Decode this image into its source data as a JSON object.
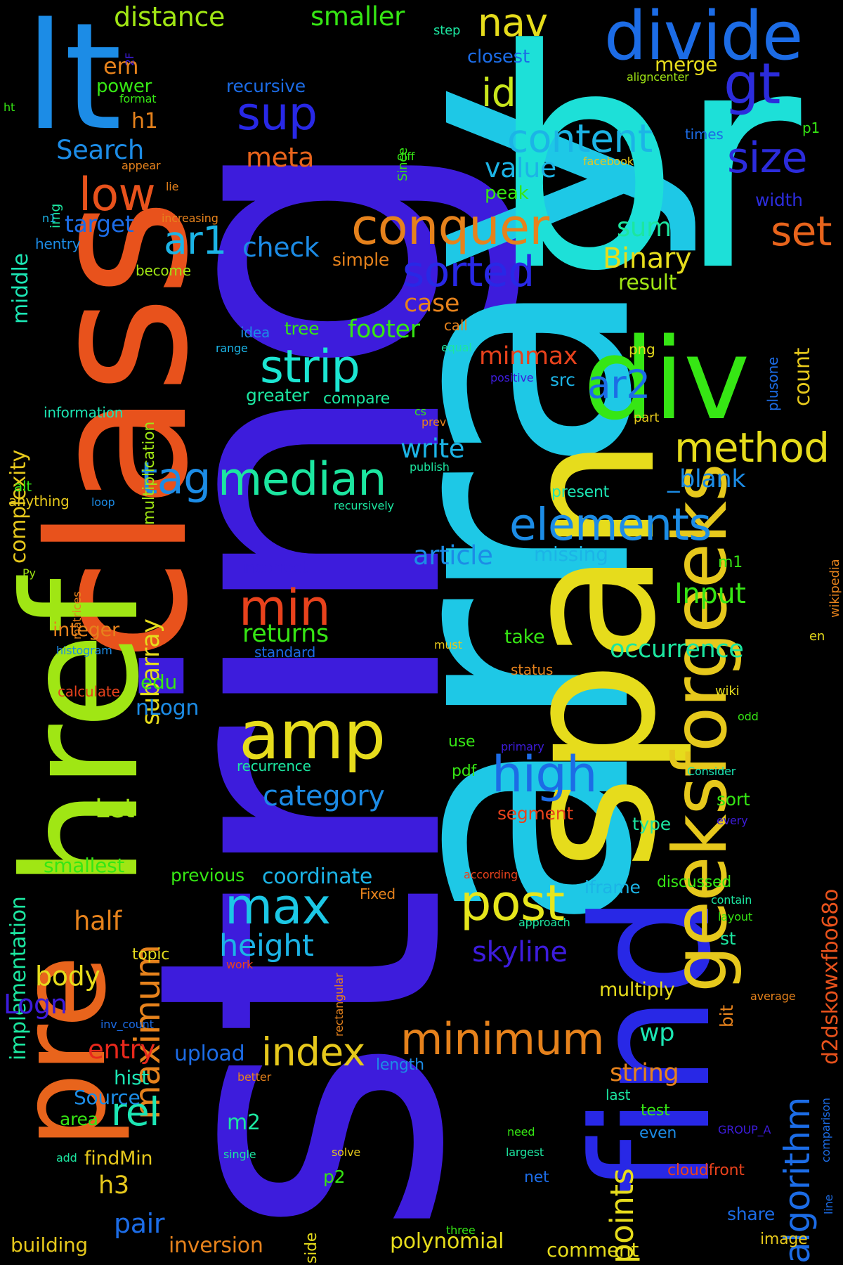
{
  "background": "#000000",
  "words": [
    {
      "text": "string",
      "color": "#3d1cdc"
    },
    {
      "text": "array",
      "color": "#1ec8e6"
    },
    {
      "text": "br",
      "color": "#1de0d8"
    },
    {
      "text": "class",
      "color": "#e8521c"
    },
    {
      "text": "span",
      "color": "#e6dc1c"
    },
    {
      "text": "href",
      "color": "#a0e614"
    },
    {
      "text": "lt",
      "color": "#1c8ce6"
    },
    {
      "text": "div",
      "color": "#36e614"
    },
    {
      "text": "find",
      "color": "#2828e6"
    },
    {
      "text": "pre",
      "color": "#e8641c"
    },
    {
      "text": "divide",
      "color": "#1c6ce6"
    },
    {
      "text": "gt",
      "color": "#2c2cdc"
    },
    {
      "text": "geeksforgeeks",
      "color": "#e6c81c"
    },
    {
      "text": "amp",
      "color": "#e6dc1c"
    },
    {
      "text": "conquer",
      "color": "#e6821c"
    },
    {
      "text": "median",
      "color": "#1ce6a0"
    },
    {
      "text": "elements",
      "color": "#1c8ce6"
    },
    {
      "text": "minimum",
      "color": "#e6821c"
    },
    {
      "text": "tag",
      "color": "#1c8ce6"
    },
    {
      "text": "strip",
      "color": "#1ce6d2"
    },
    {
      "text": "sorted",
      "color": "#2828e6"
    },
    {
      "text": "method",
      "color": "#e6dc1c"
    },
    {
      "text": "min",
      "color": "#e8421c"
    },
    {
      "text": "max",
      "color": "#1cc8e6"
    },
    {
      "text": "post",
      "color": "#e6e61c"
    },
    {
      "text": "high",
      "color": "#1c6ce6"
    },
    {
      "text": "index",
      "color": "#e6c81c"
    },
    {
      "text": "ar1",
      "color": "#1cb4e6"
    },
    {
      "text": "ar2",
      "color": "#1c6ce6"
    },
    {
      "text": "sup",
      "color": "#2828e6"
    },
    {
      "text": "low",
      "color": "#e8521c"
    },
    {
      "text": "content",
      "color": "#1cb4e6"
    },
    {
      "text": "nav",
      "color": "#e6dc1c"
    },
    {
      "text": "size",
      "color": "#2c2cdc"
    },
    {
      "text": "set",
      "color": "#e8641c"
    },
    {
      "text": "id",
      "color": "#c8e61c"
    },
    {
      "text": "maximum",
      "color": "#e6821c"
    },
    {
      "text": "algorithm",
      "color": "#1c6ce6"
    },
    {
      "text": "rel",
      "color": "#1ce6b4"
    },
    {
      "text": "points",
      "color": "#e6dc1c"
    },
    {
      "text": "height",
      "color": "#1cb4e6"
    },
    {
      "text": "skyline",
      "color": "#3d1cdc"
    },
    {
      "text": "category",
      "color": "#1c8ce6"
    },
    {
      "text": "implementation",
      "color": "#1ce6a0"
    },
    {
      "text": "complexity",
      "color": "#e6c81c"
    },
    {
      "text": "subarray",
      "color": "#e6dc1c"
    },
    {
      "text": "d2dskowxfbo68o",
      "color": "#e8521c"
    },
    {
      "text": "Binary",
      "color": "#e6dc1c"
    },
    {
      "text": "Input",
      "color": "#36e614"
    },
    {
      "text": "occurrence",
      "color": "#1ce6a0"
    },
    {
      "text": "article",
      "color": "#1c8ce6"
    },
    {
      "text": "write",
      "color": "#1cb4e6"
    },
    {
      "text": "minmax",
      "color": "#e8421c"
    },
    {
      "text": "footer",
      "color": "#36e614"
    },
    {
      "text": "returns",
      "color": "#36e614"
    },
    {
      "text": "check",
      "color": "#1c8ce6"
    },
    {
      "text": "Search",
      "color": "#1c8ce6"
    },
    {
      "text": "meta",
      "color": "#e8641c"
    },
    {
      "text": "target",
      "color": "#1c6ce6"
    },
    {
      "text": "distance",
      "color": "#a0e614"
    },
    {
      "text": "smaller",
      "color": "#36e614"
    },
    {
      "text": "case",
      "color": "#e6821c"
    },
    {
      "text": "value",
      "color": "#1cb4e6"
    },
    {
      "text": "sum",
      "color": "#1ce6a0"
    },
    {
      "text": "result",
      "color": "#a0e614"
    },
    {
      "text": "count",
      "color": "#e6c81c"
    },
    {
      "text": "_blank",
      "color": "#1c8ce6"
    },
    {
      "text": "missing",
      "color": "#1cb4e6"
    },
    {
      "text": "entry",
      "color": "#e8281c"
    },
    {
      "text": "upload",
      "color": "#1c6ce6"
    },
    {
      "text": "string",
      "color": "#e6821c"
    },
    {
      "text": "pair",
      "color": "#1c6ce6"
    },
    {
      "text": "inversion",
      "color": "#e6821c"
    },
    {
      "text": "polynomial",
      "color": "#e6dc1c"
    },
    {
      "text": "comment",
      "color": "#e6dc1c"
    },
    {
      "text": "building",
      "color": "#e6c81c"
    },
    {
      "text": "body",
      "color": "#e6dc1c"
    },
    {
      "text": "Logn",
      "color": "#3d1cdc"
    },
    {
      "text": "h3",
      "color": "#e6c81c"
    },
    {
      "text": "m2",
      "color": "#1ce6a0"
    },
    {
      "text": "findMin",
      "color": "#e6c81c"
    },
    {
      "text": "hist",
      "color": "#1ce6b4"
    },
    {
      "text": "Source",
      "color": "#1c8ce6"
    },
    {
      "text": "area",
      "color": "#36e614"
    },
    {
      "text": "half",
      "color": "#e6821c"
    },
    {
      "text": "topic",
      "color": "#e6dc1c"
    },
    {
      "text": "coordinate",
      "color": "#1cb4e6"
    },
    {
      "text": "previous",
      "color": "#36e614"
    },
    {
      "text": "smallest",
      "color": "#36e614"
    },
    {
      "text": "Let",
      "color": "#a0e614"
    },
    {
      "text": "nLogn",
      "color": "#1c8ce6"
    },
    {
      "text": "edu",
      "color": "#36e614"
    },
    {
      "text": "integer",
      "color": "#e6821c"
    },
    {
      "text": "calculate",
      "color": "#e8421c"
    },
    {
      "text": "histogram",
      "color": "#1c8ce6"
    },
    {
      "text": "middle",
      "color": "#1ce6b4"
    },
    {
      "text": "img",
      "color": "#1ce6a0"
    },
    {
      "text": "hentry",
      "color": "#1c8ce6"
    },
    {
      "text": "n1",
      "color": "#1cb4e6"
    },
    {
      "text": "power",
      "color": "#36e614"
    },
    {
      "text": "format",
      "color": "#36e614"
    },
    {
      "text": "h1",
      "color": "#e6821c"
    },
    {
      "text": "em",
      "color": "#e6821c"
    },
    {
      "text": "2F",
      "color": "#3d1cdc"
    },
    {
      "text": "ht",
      "color": "#36e614"
    },
    {
      "text": "appear",
      "color": "#e6821c"
    },
    {
      "text": "lie",
      "color": "#e6821c"
    },
    {
      "text": "increasing",
      "color": "#e6821c"
    },
    {
      "text": "become",
      "color": "#a0e614"
    },
    {
      "text": "simple",
      "color": "#e6821c"
    },
    {
      "text": "multiplication",
      "color": "#a0e614"
    },
    {
      "text": "idea",
      "color": "#1c8ce6"
    },
    {
      "text": "tree",
      "color": "#36e614"
    },
    {
      "text": "range",
      "color": "#1cb4e6"
    },
    {
      "text": "greater",
      "color": "#1ce6a0"
    },
    {
      "text": "compare",
      "color": "#1ce6a0"
    },
    {
      "text": "information",
      "color": "#1ce6b4"
    },
    {
      "text": "alt",
      "color": "#36e614"
    },
    {
      "text": "anything",
      "color": "#e6c81c"
    },
    {
      "text": "loop",
      "color": "#1c8ce6"
    },
    {
      "text": "recursively",
      "color": "#1ce6a0"
    },
    {
      "text": "Py",
      "color": "#a0e614"
    },
    {
      "text": "matrices",
      "color": "#e6821c"
    },
    {
      "text": "incorrect",
      "color": "#3d1cdc"
    },
    {
      "text": "standard",
      "color": "#1c6ce6"
    },
    {
      "text": "recurrence",
      "color": "#1ce6a0"
    },
    {
      "text": "recursive",
      "color": "#1c6ce6"
    },
    {
      "text": "step",
      "color": "#1ce6a0"
    },
    {
      "text": "closest",
      "color": "#1c6ce6"
    },
    {
      "text": "merge",
      "color": "#e6dc1c"
    },
    {
      "text": "aligncenter",
      "color": "#a0e614"
    },
    {
      "text": "Since",
      "color": "#36e614"
    },
    {
      "text": "diff",
      "color": "#36e614"
    },
    {
      "text": "times",
      "color": "#1c6ce6"
    },
    {
      "text": "p1",
      "color": "#36e614"
    },
    {
      "text": "facebook",
      "color": "#e6c81c"
    },
    {
      "text": "width",
      "color": "#2c2cdc"
    },
    {
      "text": "peak",
      "color": "#36e614"
    },
    {
      "text": "plusone",
      "color": "#1c6ce6"
    },
    {
      "text": "call",
      "color": "#e6821c"
    },
    {
      "text": "equal",
      "color": "#1ce6a0"
    },
    {
      "text": "png",
      "color": "#e6dc1c"
    },
    {
      "text": "positive",
      "color": "#3d1cdc"
    },
    {
      "text": "src",
      "color": "#1cb4e6"
    },
    {
      "text": "cs",
      "color": "#36e614"
    },
    {
      "text": "prev",
      "color": "#e6821c"
    },
    {
      "text": "part",
      "color": "#e6c81c"
    },
    {
      "text": "publish",
      "color": "#1ce6a0"
    },
    {
      "text": "present",
      "color": "#1ce6b4"
    },
    {
      "text": "m1",
      "color": "#36e614"
    },
    {
      "text": "wikipedia",
      "color": "#e6821c"
    },
    {
      "text": "must",
      "color": "#e6c81c"
    },
    {
      "text": "take",
      "color": "#36e614"
    },
    {
      "text": "status",
      "color": "#e6821c"
    },
    {
      "text": "en",
      "color": "#e6dc1c"
    },
    {
      "text": "wiki",
      "color": "#e6dc1c"
    },
    {
      "text": "odd",
      "color": "#36e614"
    },
    {
      "text": "use",
      "color": "#36e614"
    },
    {
      "text": "primary",
      "color": "#3d1cdc"
    },
    {
      "text": "Consider",
      "color": "#1ce6b4"
    },
    {
      "text": "pdf",
      "color": "#36e614"
    },
    {
      "text": "segment",
      "color": "#e8421c"
    },
    {
      "text": "sort",
      "color": "#36e614"
    },
    {
      "text": "every",
      "color": "#3d1cdc"
    },
    {
      "text": "type",
      "color": "#1ce6a0"
    },
    {
      "text": "according",
      "color": "#e8421c"
    },
    {
      "text": "Fixed",
      "color": "#e6821c"
    },
    {
      "text": "iframe",
      "color": "#1cb4e6"
    },
    {
      "text": "discussed",
      "color": "#36e614"
    },
    {
      "text": "contain",
      "color": "#1ce6a0"
    },
    {
      "text": "layout",
      "color": "#36e614"
    },
    {
      "text": "approach",
      "color": "#1ce6a0"
    },
    {
      "text": "st",
      "color": "#1ce6a0"
    },
    {
      "text": "rectangular",
      "color": "#e6821c"
    },
    {
      "text": "work",
      "color": "#e8421c"
    },
    {
      "text": "multiply",
      "color": "#e6dc1c"
    },
    {
      "text": "bit",
      "color": "#e6821c"
    },
    {
      "text": "average",
      "color": "#e6821c"
    },
    {
      "text": "wp",
      "color": "#1ce6b4"
    },
    {
      "text": "length",
      "color": "#1c8ce6"
    },
    {
      "text": "better",
      "color": "#e6821c"
    },
    {
      "text": "inv_count",
      "color": "#1c6ce6"
    },
    {
      "text": "comparison",
      "color": "#1c6ce6"
    },
    {
      "text": "last",
      "color": "#1ce6a0"
    },
    {
      "text": "test",
      "color": "#36e614"
    },
    {
      "text": "even",
      "color": "#1c8ce6"
    },
    {
      "text": "GROUP_A",
      "color": "#3d1cdc"
    },
    {
      "text": "need",
      "color": "#36e614"
    },
    {
      "text": "largest",
      "color": "#1ce6a0"
    },
    {
      "text": "cloudfront",
      "color": "#e8421c"
    },
    {
      "text": "net",
      "color": "#1c6ce6"
    },
    {
      "text": "single",
      "color": "#1ce6a0"
    },
    {
      "text": "solve",
      "color": "#e6c81c"
    },
    {
      "text": "p2",
      "color": "#36e614"
    },
    {
      "text": "add",
      "color": "#1ce6a0"
    },
    {
      "text": "side",
      "color": "#e6dc1c"
    },
    {
      "text": "three",
      "color": "#36e614"
    },
    {
      "text": "share",
      "color": "#1c6ce6"
    },
    {
      "text": "image",
      "color": "#e6c81c"
    },
    {
      "text": "line",
      "color": "#1c6ce6"
    }
  ]
}
